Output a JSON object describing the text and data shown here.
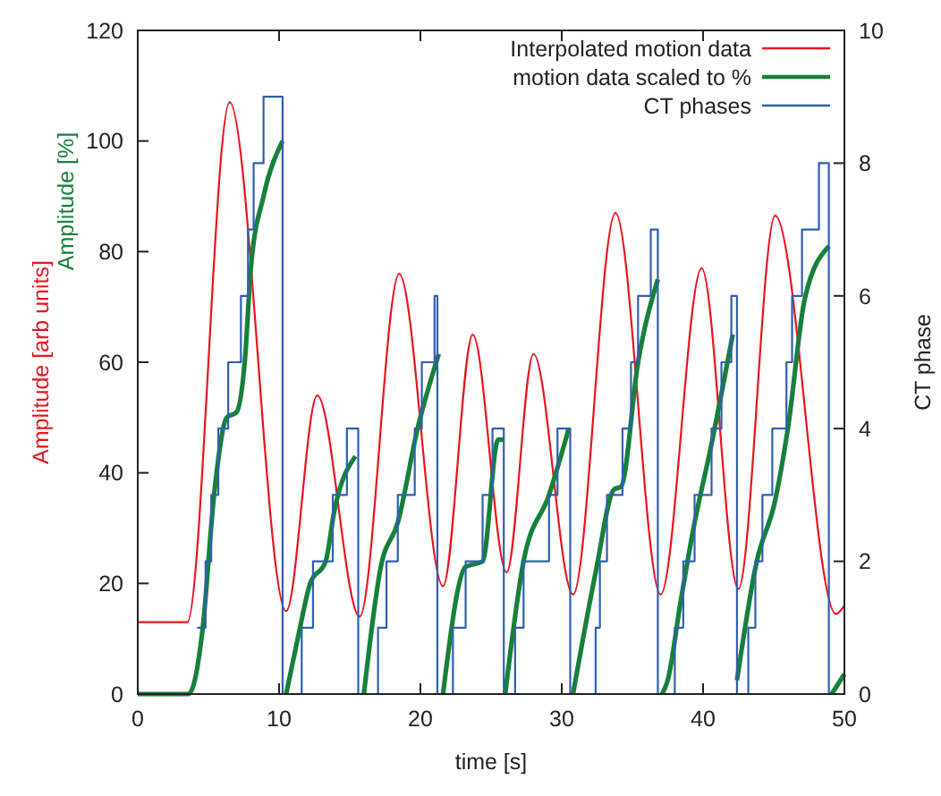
{
  "chart_data": {
    "type": "line",
    "xlabel": "time [s]",
    "ylabel": "Amplitude [arb units]",
    "y2label": "CT phase",
    "annotations": [
      "Amplitude [%]"
    ],
    "xlim": [
      0,
      50
    ],
    "xticks": [
      0,
      10,
      20,
      30,
      40,
      50
    ],
    "ylim": [
      0,
      120
    ],
    "yticks": [
      0,
      20,
      40,
      60,
      80,
      100,
      120
    ],
    "y2lim": [
      0,
      10
    ],
    "y2ticks": [
      0,
      2,
      4,
      6,
      8,
      10
    ],
    "grid": false,
    "legend": "top right",
    "marker": "none",
    "line_style": "solid",
    "series": [
      {
        "name": "Interpolated motion data",
        "color": "#e8141e",
        "x": [
          0,
          3.5,
          6.5,
          10.5,
          12.7,
          15.7,
          18.5,
          21.6,
          23.7,
          26.1,
          28.0,
          30.8,
          33.8,
          37.0,
          39.9,
          42.5,
          45.1,
          49.4,
          50
        ],
        "values": [
          13,
          13,
          107,
          15,
          54,
          14,
          76,
          19.5,
          65,
          22,
          61.5,
          18,
          87,
          18,
          77,
          19,
          86.5,
          14.5,
          16
        ]
      },
      {
        "name": "motion data scaled to %",
        "color": "#17803a",
        "x": [
          0,
          3.6,
          4.6,
          5.4,
          6.3,
          7.0,
          7.6,
          8.0,
          8.9,
          10.25,
          10.4,
          10.5,
          11.4,
          12.2,
          13.3,
          13.9,
          15.4,
          15.7,
          16.0,
          17.2,
          18.4,
          19.8,
          21.3,
          21.45,
          21.6,
          23.2,
          24.4,
          25.5,
          25.9,
          25.95,
          26.0,
          27.3,
          29.1,
          30.5,
          30.65,
          30.8,
          32.4,
          33.7,
          34.2,
          35.4,
          36.8,
          36.95,
          37.1,
          37.5,
          38.4,
          39.4,
          40.5,
          42.1,
          42.25,
          42.4,
          43.8,
          45.1,
          46.0,
          47.2,
          48.9,
          49.0,
          49.1,
          50
        ],
        "values": [
          0,
          0,
          12,
          36,
          50,
          51,
          61,
          77,
          90,
          100,
          null,
          0,
          11,
          20,
          24,
          33,
          43,
          null,
          0,
          23,
          31,
          48,
          61.5,
          null,
          0,
          23,
          24,
          46,
          46,
          null,
          0,
          24,
          36,
          48,
          null,
          0,
          22,
          37,
          37.5,
          60,
          75,
          null,
          0,
          2.5,
          16.5,
          31,
          44,
          65,
          null,
          2.5,
          24,
          35,
          48,
          71.5,
          81,
          null,
          0,
          3.6
        ]
      },
      {
        "name": "CT phases",
        "type": "step",
        "axis": "y2",
        "color": "#2f5fb0",
        "x": [
          4.2,
          4.8,
          5.2,
          5.7,
          6.4,
          7.3,
          7.8,
          8.2,
          8.9,
          10.25,
          11.6,
          12.4,
          13.8,
          14.8,
          15.6,
          17.0,
          17.6,
          18.4,
          19.6,
          20.1,
          21.0,
          21.2,
          22.3,
          23.2,
          24.4,
          25.1,
          25.9,
          26.7,
          27.3,
          29.1,
          29.7,
          30.6,
          32.4,
          32.7,
          33.2,
          34.3,
          34.9,
          35.4,
          36.3,
          36.8,
          38.0,
          38.6,
          39.4,
          40.6,
          41.3,
          42.0,
          42.4,
          43.2,
          43.7,
          44.2,
          44.9,
          45.9,
          46.3,
          47.0,
          48.2,
          48.9
        ],
        "values": [
          1,
          2,
          3,
          4,
          5,
          6,
          7,
          8,
          9,
          0,
          1,
          2,
          3,
          4,
          0,
          1,
          2,
          3,
          4,
          5,
          6,
          0,
          1,
          2,
          3,
          4,
          0,
          1,
          2,
          3,
          4,
          0,
          1,
          2,
          3,
          4,
          5,
          6,
          7,
          0,
          1,
          2,
          3,
          4,
          5,
          6,
          0,
          1,
          2,
          3,
          4,
          5,
          6,
          7,
          8,
          0
        ]
      }
    ]
  }
}
